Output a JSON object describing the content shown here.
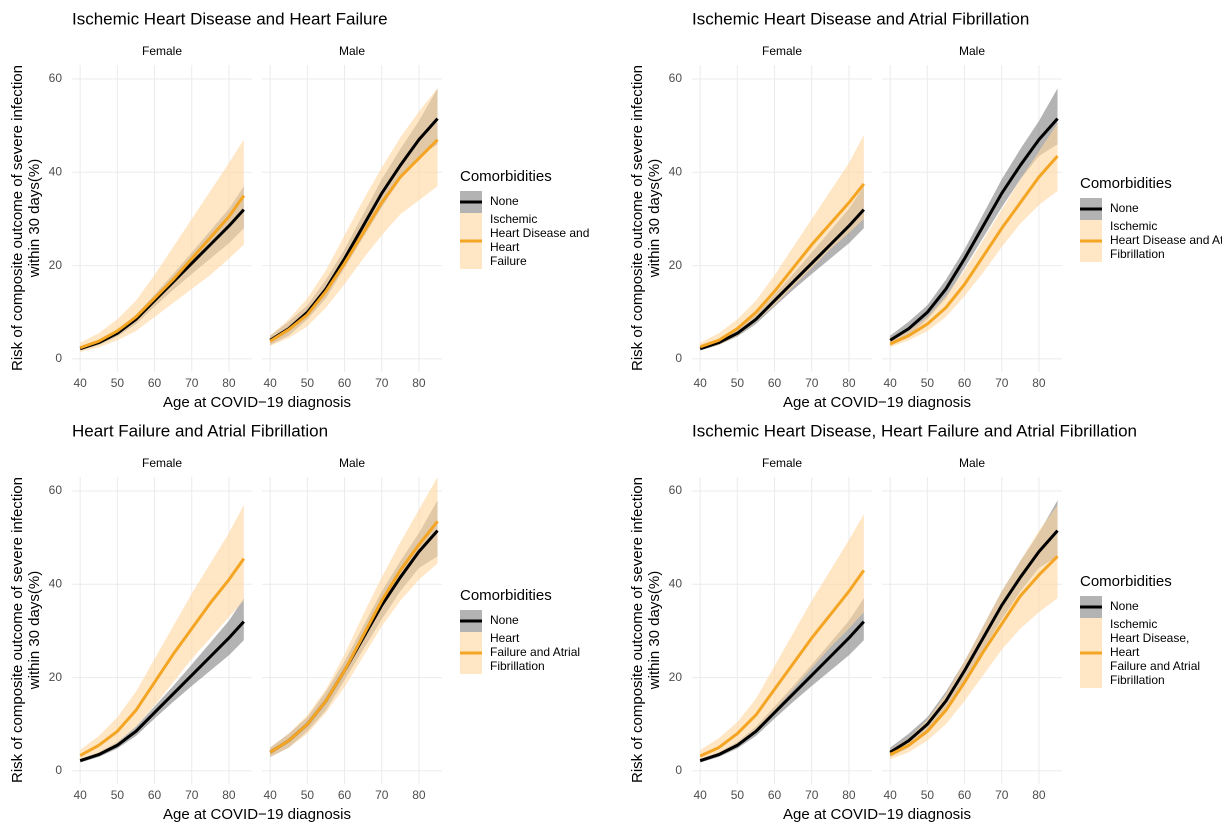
{
  "chart_data": [
    {
      "type": "line",
      "title": "Ischemic Heart Disease and Heart Failure",
      "x_label": "Age at COVID−19 diagnosis",
      "y_label": "Risk of composite outcome of severe infection\nwithin 30 days(%)",
      "legend_title": "Comorbidities",
      "series": [
        {
          "name": "None",
          "color": "#000000",
          "band_color": "#808080"
        },
        {
          "name": "Ischemic\nHeart Disease and\nHeart\nFailure",
          "color": "#f4a523",
          "band_color": "#ffd59e"
        }
      ],
      "xlim": [
        37.8,
        86.2
      ],
      "xticks": [
        40,
        50,
        60,
        70,
        80
      ],
      "ylim": [
        -2.8,
        63
      ],
      "yticks": [
        0,
        20,
        40,
        60
      ],
      "grid": true,
      "facets": [
        {
          "label": "Female",
          "x": [
            40,
            45,
            50,
            55,
            60,
            65,
            70,
            75,
            80,
            84
          ],
          "series": [
            {
              "values": [
                2.2,
                3.5,
                5.5,
                8.5,
                12.5,
                16.5,
                20.5,
                24.5,
                28.5,
                32
              ],
              "lower": [
                1.8,
                3,
                4.8,
                7.5,
                11.2,
                14.8,
                18.2,
                21.5,
                24.8,
                28
              ],
              "upper": [
                2.6,
                4,
                6.2,
                9.5,
                13.8,
                18.2,
                22.8,
                27.5,
                32.2,
                37
              ]
            },
            {
              "values": [
                2.4,
                3.8,
                6,
                9,
                13,
                17,
                21.5,
                26,
                30.5,
                35
              ],
              "lower": [
                1.5,
                2.5,
                4,
                6,
                9,
                12,
                15,
                18,
                21.5,
                24.5
              ],
              "upper": [
                3.5,
                5.5,
                8.5,
                12.5,
                18,
                24,
                30,
                36,
                42,
                47
              ]
            }
          ]
        },
        {
          "label": "Male",
          "x": [
            40,
            45,
            50,
            55,
            60,
            65,
            70,
            75,
            80,
            85
          ],
          "series": [
            {
              "values": [
                4,
                6.5,
                10,
                15,
                21.5,
                28.5,
                35.5,
                41.5,
                47,
                51.5
              ],
              "lower": [
                3,
                5,
                8.5,
                13,
                19.5,
                26,
                32.5,
                38.5,
                43.5,
                46
              ],
              "upper": [
                5,
                8,
                11.5,
                17,
                23.5,
                31,
                38.5,
                45,
                51,
                58
              ]
            },
            {
              "values": [
                3.8,
                6.3,
                9.5,
                14.5,
                20.5,
                27,
                33.5,
                39,
                43,
                47
              ],
              "lower": [
                2.8,
                4.5,
                7,
                11,
                16,
                21.5,
                26.5,
                31,
                34,
                37
              ],
              "upper": [
                5,
                8.5,
                13,
                19,
                26.5,
                34,
                41,
                47.5,
                53,
                58
              ]
            }
          ]
        }
      ]
    },
    {
      "type": "line",
      "title": "Ischemic Heart Disease and Atrial Fibrillation",
      "x_label": "Age at COVID−19 diagnosis",
      "y_label": "Risk of composite outcome of severe infection\nwithin 30 days(%)",
      "legend_title": "Comorbidities",
      "series": [
        {
          "name": "None",
          "color": "#000000",
          "band_color": "#808080"
        },
        {
          "name": "Ischemic\nHeart Disease and Atrial\nFibrillation",
          "color": "#f4a523",
          "band_color": "#ffd59e"
        }
      ],
      "xlim": [
        37.8,
        86.2
      ],
      "xticks": [
        40,
        50,
        60,
        70,
        80
      ],
      "ylim": [
        -2.8,
        63
      ],
      "yticks": [
        0,
        20,
        40,
        60
      ],
      "grid": true,
      "facets": [
        {
          "label": "Female",
          "x": [
            40,
            45,
            50,
            55,
            60,
            65,
            70,
            75,
            80,
            84
          ],
          "series": [
            {
              "values": [
                2.2,
                3.5,
                5.5,
                8.5,
                12.5,
                16.5,
                20.5,
                24.5,
                28.5,
                32
              ],
              "lower": [
                1.8,
                3,
                4.8,
                7.5,
                11.2,
                14.8,
                18.2,
                21.5,
                24.8,
                28
              ],
              "upper": [
                2.6,
                4,
                6.2,
                9.5,
                13.8,
                18.2,
                22.8,
                27.5,
                32.2,
                37
              ]
            },
            {
              "values": [
                2.6,
                4,
                6.5,
                10,
                14.5,
                19.5,
                24.5,
                29,
                33.5,
                37.5
              ],
              "lower": [
                2,
                3,
                5,
                8,
                11.5,
                15.5,
                19.5,
                23.5,
                27,
                30
              ],
              "upper": [
                3.5,
                5.5,
                8.5,
                12.5,
                18,
                24,
                30,
                36,
                42,
                48
              ]
            }
          ]
        },
        {
          "label": "Male",
          "x": [
            40,
            45,
            50,
            55,
            60,
            65,
            70,
            75,
            80,
            85
          ],
          "series": [
            {
              "values": [
                4,
                6.5,
                10,
                15,
                21.5,
                28.5,
                35.5,
                41.5,
                47,
                51.5
              ],
              "lower": [
                3,
                5,
                8.5,
                13,
                19.5,
                26,
                32.5,
                38.5,
                43.5,
                46
              ],
              "upper": [
                5,
                8,
                11.5,
                17,
                23.5,
                31,
                38.5,
                45,
                51,
                58
              ]
            },
            {
              "values": [
                3.2,
                5,
                7.5,
                11,
                16,
                22,
                28,
                33.5,
                39,
                43.5
              ],
              "lower": [
                2.5,
                4,
                6,
                9,
                13.5,
                18.5,
                24,
                29,
                33,
                36
              ],
              "upper": [
                4,
                6,
                9,
                13.5,
                19,
                25.5,
                32,
                38.5,
                44.5,
                50.5
              ]
            }
          ]
        }
      ]
    },
    {
      "type": "line",
      "title": "Heart Failure and Atrial Fibrillation",
      "x_label": "Age at COVID−19 diagnosis",
      "y_label": "Risk of composite outcome of severe infection\nwithin 30 days(%)",
      "legend_title": "Comorbidities",
      "series": [
        {
          "name": "None",
          "color": "#000000",
          "band_color": "#808080"
        },
        {
          "name": "Heart\nFailure and Atrial\nFibrillation",
          "color": "#f4a523",
          "band_color": "#ffd59e"
        }
      ],
      "xlim": [
        37.8,
        86.2
      ],
      "xticks": [
        40,
        50,
        60,
        70,
        80
      ],
      "ylim": [
        -2.8,
        63
      ],
      "yticks": [
        0,
        20,
        40,
        60
      ],
      "grid": true,
      "facets": [
        {
          "label": "Female",
          "x": [
            40,
            45,
            50,
            55,
            60,
            65,
            70,
            75,
            80,
            84
          ],
          "series": [
            {
              "values": [
                2.2,
                3.5,
                5.5,
                8.5,
                12.5,
                16.5,
                20.5,
                24.5,
                28.5,
                32
              ],
              "lower": [
                1.8,
                3,
                4.8,
                7.5,
                11.2,
                14.8,
                18.2,
                21.5,
                24.8,
                28
              ],
              "upper": [
                2.6,
                4,
                6.2,
                9.5,
                13.8,
                18.2,
                22.8,
                27.5,
                32.2,
                37
              ]
            },
            {
              "values": [
                3.3,
                5.5,
                8.5,
                13,
                19,
                25,
                30.5,
                36,
                41,
                45.5
              ],
              "lower": [
                2.2,
                3.5,
                6,
                9.5,
                14,
                19,
                24,
                28.5,
                33,
                36.5
              ],
              "upper": [
                4.5,
                7.5,
                11.5,
                17,
                24,
                31,
                38,
                44.5,
                51,
                57
              ]
            }
          ]
        },
        {
          "label": "Male",
          "x": [
            40,
            45,
            50,
            55,
            60,
            65,
            70,
            75,
            80,
            85
          ],
          "series": [
            {
              "values": [
                4,
                6.5,
                10,
                15,
                21.5,
                28.5,
                35.5,
                41.5,
                47,
                51.5
              ],
              "lower": [
                3,
                5,
                8.5,
                13,
                19.5,
                26,
                32.5,
                38.5,
                43.5,
                46
              ],
              "upper": [
                5,
                8,
                11.5,
                17,
                23.5,
                31,
                38.5,
                45,
                51,
                58
              ]
            },
            {
              "values": [
                4,
                6.5,
                10,
                15,
                21.5,
                29,
                36.5,
                43,
                48.5,
                53.5
              ],
              "lower": [
                3,
                5,
                8,
                12.5,
                18,
                24.5,
                31,
                36.5,
                41,
                44.5
              ],
              "upper": [
                5,
                8,
                12,
                17.5,
                25,
                33.5,
                41.5,
                49,
                56,
                63
              ]
            }
          ]
        }
      ]
    },
    {
      "type": "line",
      "title": "Ischemic Heart Disease, Heart Failure and Atrial Fibrillation",
      "x_label": "Age at COVID−19 diagnosis",
      "y_label": "Risk of composite outcome of severe infection\nwithin 30 days(%)",
      "legend_title": "Comorbidities",
      "series": [
        {
          "name": "None",
          "color": "#000000",
          "band_color": "#808080"
        },
        {
          "name": "Ischemic\nHeart Disease,\nHeart\nFailure and Atrial\nFibrillation",
          "color": "#f4a523",
          "band_color": "#ffd59e"
        }
      ],
      "xlim": [
        37.8,
        86.2
      ],
      "xticks": [
        40,
        50,
        60,
        70,
        80
      ],
      "ylim": [
        -2.8,
        63
      ],
      "yticks": [
        0,
        20,
        40,
        60
      ],
      "grid": true,
      "facets": [
        {
          "label": "Female",
          "x": [
            40,
            45,
            50,
            55,
            60,
            65,
            70,
            75,
            80,
            84
          ],
          "series": [
            {
              "values": [
                2.2,
                3.5,
                5.5,
                8.5,
                12.5,
                16.5,
                20.5,
                24.5,
                28.5,
                32
              ],
              "lower": [
                1.8,
                3,
                4.8,
                7.5,
                11.2,
                14.8,
                18.2,
                21.5,
                24.8,
                28
              ],
              "upper": [
                2.6,
                4,
                6.2,
                9.5,
                13.8,
                18.2,
                22.8,
                27.5,
                32.2,
                37
              ]
            },
            {
              "values": [
                3.2,
                5,
                8,
                12,
                17.5,
                23,
                28.5,
                33.5,
                38.5,
                43
              ],
              "lower": [
                2.2,
                3.5,
                5.5,
                8.5,
                13,
                17.5,
                22,
                26.5,
                30.5,
                34
              ],
              "upper": [
                4.5,
                7,
                10.5,
                15.5,
                22.5,
                29.5,
                36.5,
                43,
                49.5,
                55
              ]
            }
          ]
        },
        {
          "label": "Male",
          "x": [
            40,
            45,
            50,
            55,
            60,
            65,
            70,
            75,
            80,
            85
          ],
          "series": [
            {
              "values": [
                4,
                6.5,
                10,
                15,
                21.5,
                28.5,
                35.5,
                41.5,
                47,
                51.5
              ],
              "lower": [
                3,
                5,
                8.5,
                13,
                19.5,
                26,
                32.5,
                38.5,
                43.5,
                46
              ],
              "upper": [
                5,
                8,
                11.5,
                17,
                23.5,
                31,
                38.5,
                45,
                51,
                58
              ]
            },
            {
              "values": [
                3.5,
                5.5,
                8.5,
                13,
                19,
                25.5,
                31.5,
                37.5,
                42,
                46
              ],
              "lower": [
                2.5,
                4,
                6.5,
                10,
                15,
                20.5,
                26,
                30.5,
                34,
                37
              ],
              "upper": [
                4.5,
                7,
                11,
                16.5,
                23.5,
                31,
                38.5,
                45,
                51.5,
                57
              ]
            }
          ]
        }
      ]
    }
  ]
}
